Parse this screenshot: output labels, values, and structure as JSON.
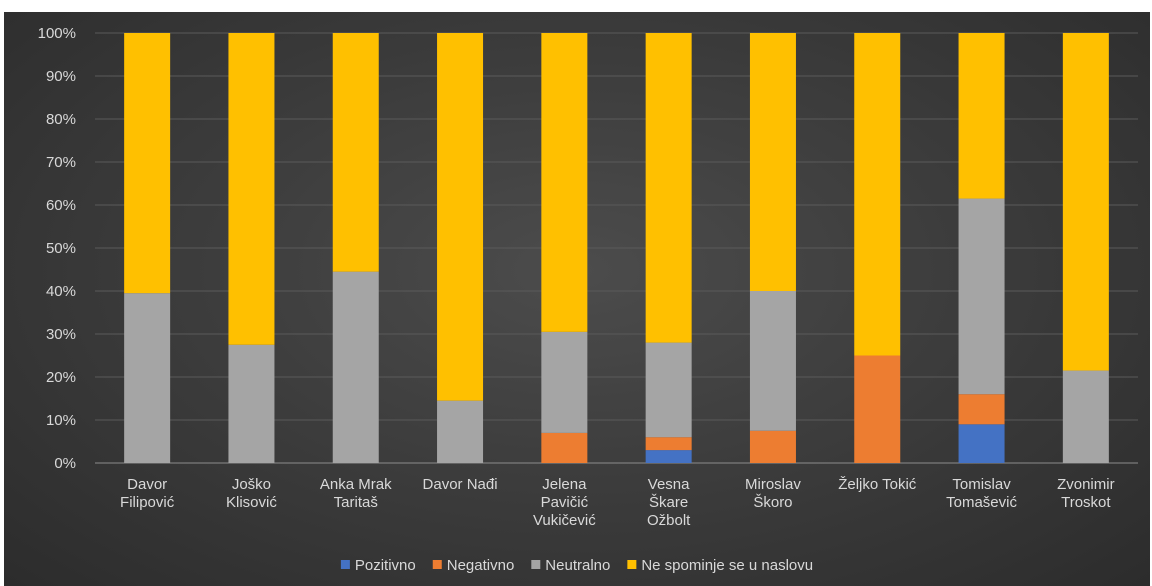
{
  "chart_data": {
    "type": "bar",
    "stacked": true,
    "normalized": true,
    "categories": [
      [
        "Davor",
        "Filipović"
      ],
      [
        "Joško",
        "Klisović"
      ],
      [
        "Anka Mrak",
        "Taritaš"
      ],
      [
        "Davor Nađi"
      ],
      [
        "Jelena",
        "Pavičić",
        "Vukičević"
      ],
      [
        "Vesna",
        "Škare",
        "Ožbolt"
      ],
      [
        "Miroslav",
        "Škoro"
      ],
      [
        "Željko Tokić"
      ],
      [
        "Tomislav",
        "Tomašević"
      ],
      [
        "Zvonimir",
        "Troskot"
      ]
    ],
    "series": [
      {
        "name": "Pozitivno",
        "color": "#4472c4",
        "values": [
          0,
          0,
          0,
          0,
          0,
          3,
          0,
          0,
          9,
          0
        ]
      },
      {
        "name": "Negativno",
        "color": "#ed7d31",
        "values": [
          0,
          0,
          0,
          0,
          7,
          3,
          7.5,
          25,
          7,
          0
        ]
      },
      {
        "name": "Neutralno",
        "color": "#a5a5a5",
        "values": [
          39.5,
          27.5,
          44.5,
          14.5,
          23.5,
          22,
          32.5,
          0,
          45.5,
          21.5
        ]
      },
      {
        "name": "Ne spominje se u naslovu",
        "color": "#ffc000",
        "values": [
          60.5,
          72.5,
          55.5,
          85.5,
          69.5,
          72,
          60,
          75,
          38.5,
          78.5
        ]
      }
    ],
    "yticks": [
      "0%",
      "10%",
      "20%",
      "30%",
      "40%",
      "50%",
      "60%",
      "70%",
      "80%",
      "90%",
      "100%"
    ],
    "ylim": [
      0,
      100
    ],
    "grid": true,
    "legend_position": "bottom"
  }
}
